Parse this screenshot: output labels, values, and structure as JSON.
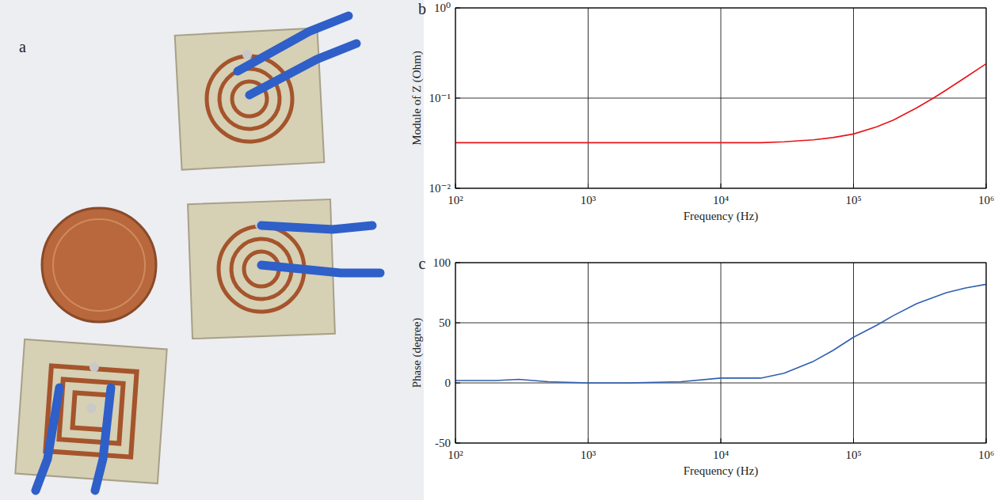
{
  "photo": {
    "panel_label": "a"
  },
  "chart_data": [
    {
      "type": "line",
      "panel_label": "b",
      "x_label": "Frequency (Hz)",
      "y_label": "Module of Z (Ohm)",
      "log": true,
      "grid": true,
      "color": "#e8141a",
      "xlim": [
        100,
        1000000
      ],
      "ylim": [
        0.01,
        1
      ],
      "xticks": [
        {
          "value": 100,
          "label": "10²"
        },
        {
          "value": 1000,
          "label": "10³"
        },
        {
          "value": 10000,
          "label": "10⁴"
        },
        {
          "value": 100000,
          "label": "10⁵"
        },
        {
          "value": 1000000,
          "label": "10⁶"
        }
      ],
      "yticks": [
        {
          "value": 0.01,
          "label": "10⁻²"
        },
        {
          "value": 0.1,
          "label": "10⁻¹"
        },
        {
          "value": 1,
          "label": "10⁰"
        }
      ],
      "x": [
        100,
        200,
        500,
        1000,
        2000,
        5000,
        10000,
        20000,
        30000,
        50000,
        70000,
        100000,
        150000,
        200000,
        300000,
        400000,
        500000,
        700000,
        1000000
      ],
      "values": [
        0.032,
        0.032,
        0.032,
        0.032,
        0.032,
        0.032,
        0.032,
        0.032,
        0.0328,
        0.0345,
        0.0365,
        0.04,
        0.048,
        0.057,
        0.078,
        0.1,
        0.123,
        0.17,
        0.24
      ]
    },
    {
      "type": "line",
      "panel_label": "c",
      "x_label": "Frequency (Hz)",
      "y_label": "Phase (degree)",
      "log": "x",
      "grid": true,
      "color": "#2f5fb0",
      "xlim": [
        100,
        1000000
      ],
      "ylim": [
        -50,
        100
      ],
      "xticks": [
        {
          "value": 100,
          "label": "10²"
        },
        {
          "value": 1000,
          "label": "10³"
        },
        {
          "value": 10000,
          "label": "10⁴"
        },
        {
          "value": 100000,
          "label": "10⁵"
        },
        {
          "value": 1000000,
          "label": "10⁶"
        }
      ],
      "yticks": [
        -50,
        0,
        50,
        100
      ],
      "x": [
        100,
        200,
        300,
        500,
        1000,
        2000,
        5000,
        10000,
        20000,
        30000,
        50000,
        70000,
        100000,
        150000,
        200000,
        300000,
        400000,
        500000,
        700000,
        1000000
      ],
      "values": [
        2,
        2,
        3,
        1,
        0,
        0,
        1,
        4,
        4,
        8,
        18,
        27,
        38,
        48,
        56,
        66,
        71,
        75,
        79,
        82
      ]
    }
  ]
}
